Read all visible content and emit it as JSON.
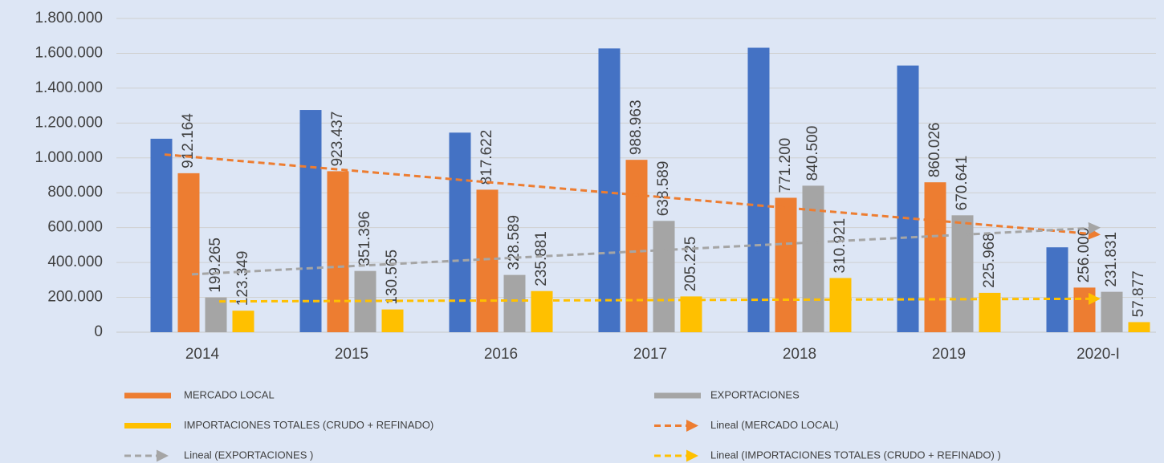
{
  "chart_data": {
    "type": "bar",
    "categories": [
      "2014",
      "2015",
      "2016",
      "2017",
      "2018",
      "2019",
      "2020-I"
    ],
    "series": [
      {
        "color": "#4472c4",
        "values": [
          1110000,
          1275000,
          1145000,
          1628000,
          1632000,
          1530000,
          487000
        ]
      },
      {
        "name": "MERCADO LOCAL",
        "trendline": "Lineal (MERCADO LOCAL)",
        "color": "#ed7d31",
        "values": [
          912164,
          923437,
          817622,
          988963,
          771200,
          860026,
          256000
        ],
        "value_labels": [
          "912.164",
          "923.437",
          "817.622",
          "988.963",
          "771.200",
          "860.026",
          "256.000"
        ]
      },
      {
        "name": "EXPORTACIONES",
        "trendline": "Lineal (EXPORTACIONES )",
        "color": "#a5a5a5",
        "values": [
          199265,
          351396,
          328589,
          638589,
          840500,
          670641,
          231831
        ],
        "value_labels": [
          "199.265",
          "351.396",
          "328.589",
          "638.589",
          "840.500",
          "670.641",
          "231.831"
        ]
      },
      {
        "name": "IMPORTACIONES TOTALES (CRUDO + REFINADO)",
        "trendline": "Lineal (IMPORTACIONES TOTALES (CRUDO + REFINADO) )",
        "color": "#ffc000",
        "values": [
          123349,
          130565,
          235881,
          205225,
          310921,
          225968,
          57877
        ],
        "value_labels": [
          "123.349",
          "130.565",
          "235.881",
          "205.225",
          "310.921",
          "225.968",
          "57.877"
        ]
      }
    ],
    "ylim": [
      0,
      1800000
    ],
    "yticks": [
      0,
      {
        "value": 200000,
        "label": "200.000"
      },
      {
        "value": 400000,
        "label": "400.000"
      },
      {
        "value": 600000,
        "label": "600.000"
      },
      {
        "value": 800000,
        "label": "800.000"
      },
      {
        "value": 1000000,
        "label": "1.000.000"
      },
      {
        "value": 1200000,
        "label": "1.200.000"
      },
      {
        "value": 1400000,
        "label": "1.400.000"
      },
      {
        "value": 1600000,
        "label": "1.600.000"
      },
      {
        "value": 1800000,
        "label": "1.800.000"
      }
    ],
    "grid": true
  }
}
